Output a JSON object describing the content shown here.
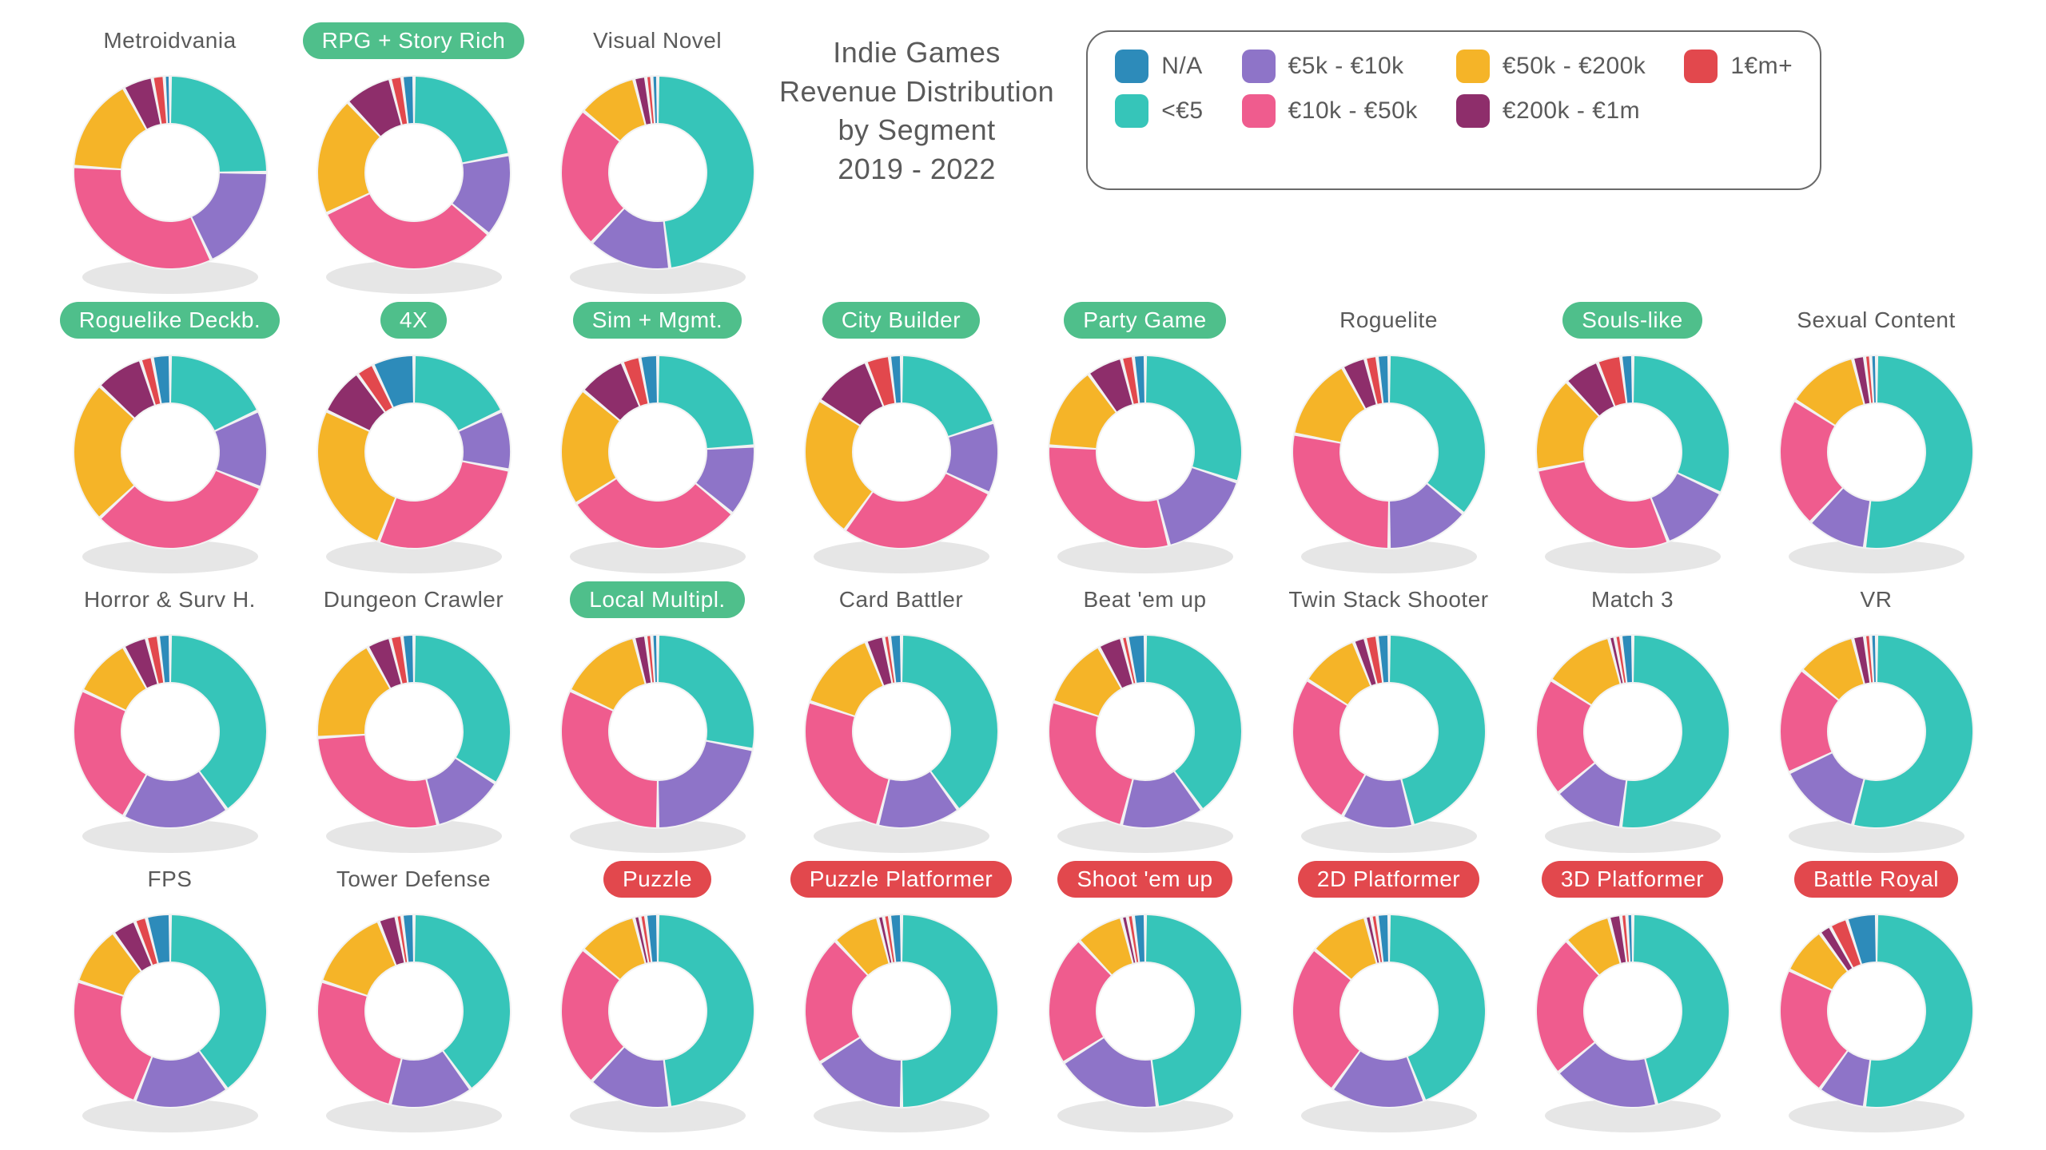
{
  "title_lines": [
    "Indie Games",
    "Revenue Distribution",
    "by Segment",
    "2019 - 2022"
  ],
  "colors": {
    "na": "#2d8bba",
    "lt5": "#36c5b9",
    "5_10": "#8e74c8",
    "10_50": "#ef5c8e",
    "50_200": "#f5b428",
    "200_1m": "#8e2e6b",
    "1m": "#e2484d",
    "back": "#f2f2f2",
    "pill_green": "#4fbf8b",
    "pill_red": "#e2484d",
    "pill_text": "#ffffff",
    "text": "#5a5a5a",
    "shadow": "#e6e6e6"
  },
  "legend": [
    {
      "key": "na",
      "label": "N/A"
    },
    {
      "key": "lt5",
      "label": "<€5"
    },
    {
      "key": "5_10",
      "label": "€5k - €10k"
    },
    {
      "key": "10_50",
      "label": "€10k - €50k"
    },
    {
      "key": "50_200",
      "label": "€50k - €200k"
    },
    {
      "key": "200_1m",
      "label": "€200k - €1m"
    },
    {
      "key": "1m",
      "label": "1€m+"
    }
  ],
  "donut_style": {
    "outer_r": 120,
    "inner_r": 62,
    "gap_deg": 2,
    "start_angle": -90,
    "shadow_color": "#e6e6e6"
  },
  "pill_style": {
    "green": {
      "bg": "#4fbf8b",
      "fg": "#ffffff"
    },
    "red": {
      "bg": "#e2484d",
      "fg": "#ffffff"
    },
    "plain": {
      "bg": "transparent",
      "fg": "#5a5a5a"
    }
  },
  "charts": [
    {
      "name": "Metroidvania",
      "pill": "plain",
      "slices": [
        {
          "k": "lt5",
          "v": 25
        },
        {
          "k": "5_10",
          "v": 18
        },
        {
          "k": "10_50",
          "v": 33
        },
        {
          "k": "50_200",
          "v": 16
        },
        {
          "k": "200_1m",
          "v": 5
        },
        {
          "k": "1m",
          "v": 2
        },
        {
          "k": "na",
          "v": 1
        }
      ]
    },
    {
      "name": "RPG + Story Rich",
      "pill": "green",
      "slices": [
        {
          "k": "lt5",
          "v": 22
        },
        {
          "k": "5_10",
          "v": 14
        },
        {
          "k": "10_50",
          "v": 32
        },
        {
          "k": "50_200",
          "v": 20
        },
        {
          "k": "200_1m",
          "v": 8
        },
        {
          "k": "1m",
          "v": 2
        },
        {
          "k": "na",
          "v": 2
        }
      ]
    },
    {
      "name": "Visual Novel",
      "pill": "plain",
      "slices": [
        {
          "k": "lt5",
          "v": 48
        },
        {
          "k": "5_10",
          "v": 14
        },
        {
          "k": "10_50",
          "v": 24
        },
        {
          "k": "50_200",
          "v": 10
        },
        {
          "k": "200_1m",
          "v": 2
        },
        {
          "k": "1m",
          "v": 1
        },
        {
          "k": "na",
          "v": 1
        }
      ]
    },
    {
      "name": "Roguelike Deckb.",
      "pill": "green",
      "slices": [
        {
          "k": "lt5",
          "v": 18
        },
        {
          "k": "5_10",
          "v": 13
        },
        {
          "k": "10_50",
          "v": 32
        },
        {
          "k": "50_200",
          "v": 24
        },
        {
          "k": "200_1m",
          "v": 8
        },
        {
          "k": "1m",
          "v": 2
        },
        {
          "k": "na",
          "v": 3
        }
      ]
    },
    {
      "name": "4X",
      "pill": "green",
      "slices": [
        {
          "k": "lt5",
          "v": 18
        },
        {
          "k": "5_10",
          "v": 10
        },
        {
          "k": "10_50",
          "v": 28
        },
        {
          "k": "50_200",
          "v": 26
        },
        {
          "k": "200_1m",
          "v": 8
        },
        {
          "k": "1m",
          "v": 3
        },
        {
          "k": "na",
          "v": 7
        }
      ]
    },
    {
      "name": "Sim + Mgmt.",
      "pill": "green",
      "slices": [
        {
          "k": "lt5",
          "v": 24
        },
        {
          "k": "5_10",
          "v": 12
        },
        {
          "k": "10_50",
          "v": 30
        },
        {
          "k": "50_200",
          "v": 20
        },
        {
          "k": "200_1m",
          "v": 8
        },
        {
          "k": "1m",
          "v": 3
        },
        {
          "k": "na",
          "v": 3
        }
      ]
    },
    {
      "name": "City Builder",
      "pill": "green",
      "slices": [
        {
          "k": "lt5",
          "v": 20
        },
        {
          "k": "5_10",
          "v": 12
        },
        {
          "k": "10_50",
          "v": 28
        },
        {
          "k": "50_200",
          "v": 24
        },
        {
          "k": "200_1m",
          "v": 10
        },
        {
          "k": "1m",
          "v": 4
        },
        {
          "k": "na",
          "v": 2
        }
      ]
    },
    {
      "name": "Party Game",
      "pill": "green",
      "slices": [
        {
          "k": "lt5",
          "v": 30
        },
        {
          "k": "5_10",
          "v": 16
        },
        {
          "k": "10_50",
          "v": 30
        },
        {
          "k": "50_200",
          "v": 14
        },
        {
          "k": "200_1m",
          "v": 6
        },
        {
          "k": "1m",
          "v": 2
        },
        {
          "k": "na",
          "v": 2
        }
      ]
    },
    {
      "name": "Roguelite",
      "pill": "plain",
      "slices": [
        {
          "k": "lt5",
          "v": 36
        },
        {
          "k": "5_10",
          "v": 14
        },
        {
          "k": "10_50",
          "v": 28
        },
        {
          "k": "50_200",
          "v": 14
        },
        {
          "k": "200_1m",
          "v": 4
        },
        {
          "k": "1m",
          "v": 2
        },
        {
          "k": "na",
          "v": 2
        }
      ]
    },
    {
      "name": "Souls-like",
      "pill": "green",
      "slices": [
        {
          "k": "lt5",
          "v": 32
        },
        {
          "k": "5_10",
          "v": 12
        },
        {
          "k": "10_50",
          "v": 28
        },
        {
          "k": "50_200",
          "v": 16
        },
        {
          "k": "200_1m",
          "v": 6
        },
        {
          "k": "1m",
          "v": 4
        },
        {
          "k": "na",
          "v": 2
        }
      ]
    },
    {
      "name": "Sexual Content",
      "pill": "plain",
      "slices": [
        {
          "k": "lt5",
          "v": 52
        },
        {
          "k": "5_10",
          "v": 10
        },
        {
          "k": "10_50",
          "v": 22
        },
        {
          "k": "50_200",
          "v": 12
        },
        {
          "k": "200_1m",
          "v": 2
        },
        {
          "k": "1m",
          "v": 1
        },
        {
          "k": "na",
          "v": 1
        }
      ]
    },
    {
      "name": "Horror & Surv H.",
      "pill": "plain",
      "slices": [
        {
          "k": "lt5",
          "v": 40
        },
        {
          "k": "5_10",
          "v": 18
        },
        {
          "k": "10_50",
          "v": 24
        },
        {
          "k": "50_200",
          "v": 10
        },
        {
          "k": "200_1m",
          "v": 4
        },
        {
          "k": "1m",
          "v": 2
        },
        {
          "k": "na",
          "v": 2
        }
      ]
    },
    {
      "name": "Dungeon Crawler",
      "pill": "plain",
      "slices": [
        {
          "k": "lt5",
          "v": 34
        },
        {
          "k": "5_10",
          "v": 12
        },
        {
          "k": "10_50",
          "v": 28
        },
        {
          "k": "50_200",
          "v": 18
        },
        {
          "k": "200_1m",
          "v": 4
        },
        {
          "k": "1m",
          "v": 2
        },
        {
          "k": "na",
          "v": 2
        }
      ]
    },
    {
      "name": "Local Multipl.",
      "pill": "green",
      "slices": [
        {
          "k": "lt5",
          "v": 28
        },
        {
          "k": "5_10",
          "v": 22
        },
        {
          "k": "10_50",
          "v": 32
        },
        {
          "k": "50_200",
          "v": 14
        },
        {
          "k": "200_1m",
          "v": 2
        },
        {
          "k": "1m",
          "v": 1
        },
        {
          "k": "na",
          "v": 1
        }
      ]
    },
    {
      "name": "Card Battler",
      "pill": "plain",
      "slices": [
        {
          "k": "lt5",
          "v": 40
        },
        {
          "k": "5_10",
          "v": 14
        },
        {
          "k": "10_50",
          "v": 26
        },
        {
          "k": "50_200",
          "v": 14
        },
        {
          "k": "200_1m",
          "v": 3
        },
        {
          "k": "1m",
          "v": 1
        },
        {
          "k": "na",
          "v": 2
        }
      ]
    },
    {
      "name": "Beat 'em up",
      "pill": "plain",
      "slices": [
        {
          "k": "lt5",
          "v": 40
        },
        {
          "k": "5_10",
          "v": 14
        },
        {
          "k": "10_50",
          "v": 26
        },
        {
          "k": "50_200",
          "v": 12
        },
        {
          "k": "200_1m",
          "v": 4
        },
        {
          "k": "1m",
          "v": 1
        },
        {
          "k": "na",
          "v": 3
        }
      ]
    },
    {
      "name": "Twin Stack Shooter",
      "pill": "plain",
      "slices": [
        {
          "k": "lt5",
          "v": 46
        },
        {
          "k": "5_10",
          "v": 12
        },
        {
          "k": "10_50",
          "v": 26
        },
        {
          "k": "50_200",
          "v": 10
        },
        {
          "k": "200_1m",
          "v": 2
        },
        {
          "k": "1m",
          "v": 2
        },
        {
          "k": "na",
          "v": 2
        }
      ]
    },
    {
      "name": "Match 3",
      "pill": "plain",
      "slices": [
        {
          "k": "lt5",
          "v": 52
        },
        {
          "k": "5_10",
          "v": 12
        },
        {
          "k": "10_50",
          "v": 20
        },
        {
          "k": "50_200",
          "v": 12
        },
        {
          "k": "200_1m",
          "v": 1
        },
        {
          "k": "1m",
          "v": 1
        },
        {
          "k": "na",
          "v": 2
        }
      ]
    },
    {
      "name": "VR",
      "pill": "plain",
      "slices": [
        {
          "k": "lt5",
          "v": 54
        },
        {
          "k": "5_10",
          "v": 14
        },
        {
          "k": "10_50",
          "v": 18
        },
        {
          "k": "50_200",
          "v": 10
        },
        {
          "k": "200_1m",
          "v": 2
        },
        {
          "k": "1m",
          "v": 1
        },
        {
          "k": "na",
          "v": 1
        }
      ]
    },
    {
      "name": "FPS",
      "pill": "plain",
      "slices": [
        {
          "k": "lt5",
          "v": 40
        },
        {
          "k": "5_10",
          "v": 16
        },
        {
          "k": "10_50",
          "v": 24
        },
        {
          "k": "50_200",
          "v": 10
        },
        {
          "k": "200_1m",
          "v": 4
        },
        {
          "k": "1m",
          "v": 2
        },
        {
          "k": "na",
          "v": 4
        }
      ]
    },
    {
      "name": "Tower Defense",
      "pill": "plain",
      "slices": [
        {
          "k": "lt5",
          "v": 40
        },
        {
          "k": "5_10",
          "v": 14
        },
        {
          "k": "10_50",
          "v": 26
        },
        {
          "k": "50_200",
          "v": 14
        },
        {
          "k": "200_1m",
          "v": 3
        },
        {
          "k": "1m",
          "v": 1
        },
        {
          "k": "na",
          "v": 2
        }
      ]
    },
    {
      "name": "Puzzle",
      "pill": "red",
      "slices": [
        {
          "k": "lt5",
          "v": 48
        },
        {
          "k": "5_10",
          "v": 14
        },
        {
          "k": "10_50",
          "v": 24
        },
        {
          "k": "50_200",
          "v": 10
        },
        {
          "k": "200_1m",
          "v": 1
        },
        {
          "k": "1m",
          "v": 1
        },
        {
          "k": "na",
          "v": 2
        }
      ]
    },
    {
      "name": "Puzzle Platformer",
      "pill": "red",
      "slices": [
        {
          "k": "lt5",
          "v": 50
        },
        {
          "k": "5_10",
          "v": 16
        },
        {
          "k": "10_50",
          "v": 22
        },
        {
          "k": "50_200",
          "v": 8
        },
        {
          "k": "200_1m",
          "v": 1
        },
        {
          "k": "1m",
          "v": 1
        },
        {
          "k": "na",
          "v": 2
        }
      ]
    },
    {
      "name": "Shoot 'em up",
      "pill": "red",
      "slices": [
        {
          "k": "lt5",
          "v": 48
        },
        {
          "k": "5_10",
          "v": 18
        },
        {
          "k": "10_50",
          "v": 22
        },
        {
          "k": "50_200",
          "v": 8
        },
        {
          "k": "200_1m",
          "v": 1
        },
        {
          "k": "1m",
          "v": 1
        },
        {
          "k": "na",
          "v": 2
        }
      ]
    },
    {
      "name": "2D Platformer",
      "pill": "red",
      "slices": [
        {
          "k": "lt5",
          "v": 44
        },
        {
          "k": "5_10",
          "v": 16
        },
        {
          "k": "10_50",
          "v": 26
        },
        {
          "k": "50_200",
          "v": 10
        },
        {
          "k": "200_1m",
          "v": 1
        },
        {
          "k": "1m",
          "v": 1
        },
        {
          "k": "na",
          "v": 2
        }
      ]
    },
    {
      "name": "3D Platformer",
      "pill": "red",
      "slices": [
        {
          "k": "lt5",
          "v": 46
        },
        {
          "k": "5_10",
          "v": 18
        },
        {
          "k": "10_50",
          "v": 24
        },
        {
          "k": "50_200",
          "v": 8
        },
        {
          "k": "200_1m",
          "v": 2
        },
        {
          "k": "1m",
          "v": 1
        },
        {
          "k": "na",
          "v": 1
        }
      ]
    },
    {
      "name": "Battle Royal",
      "pill": "red",
      "slices": [
        {
          "k": "lt5",
          "v": 52
        },
        {
          "k": "5_10",
          "v": 8
        },
        {
          "k": "10_50",
          "v": 22
        },
        {
          "k": "50_200",
          "v": 8
        },
        {
          "k": "200_1m",
          "v": 2
        },
        {
          "k": "1m",
          "v": 3
        },
        {
          "k": "na",
          "v": 5
        }
      ]
    }
  ]
}
